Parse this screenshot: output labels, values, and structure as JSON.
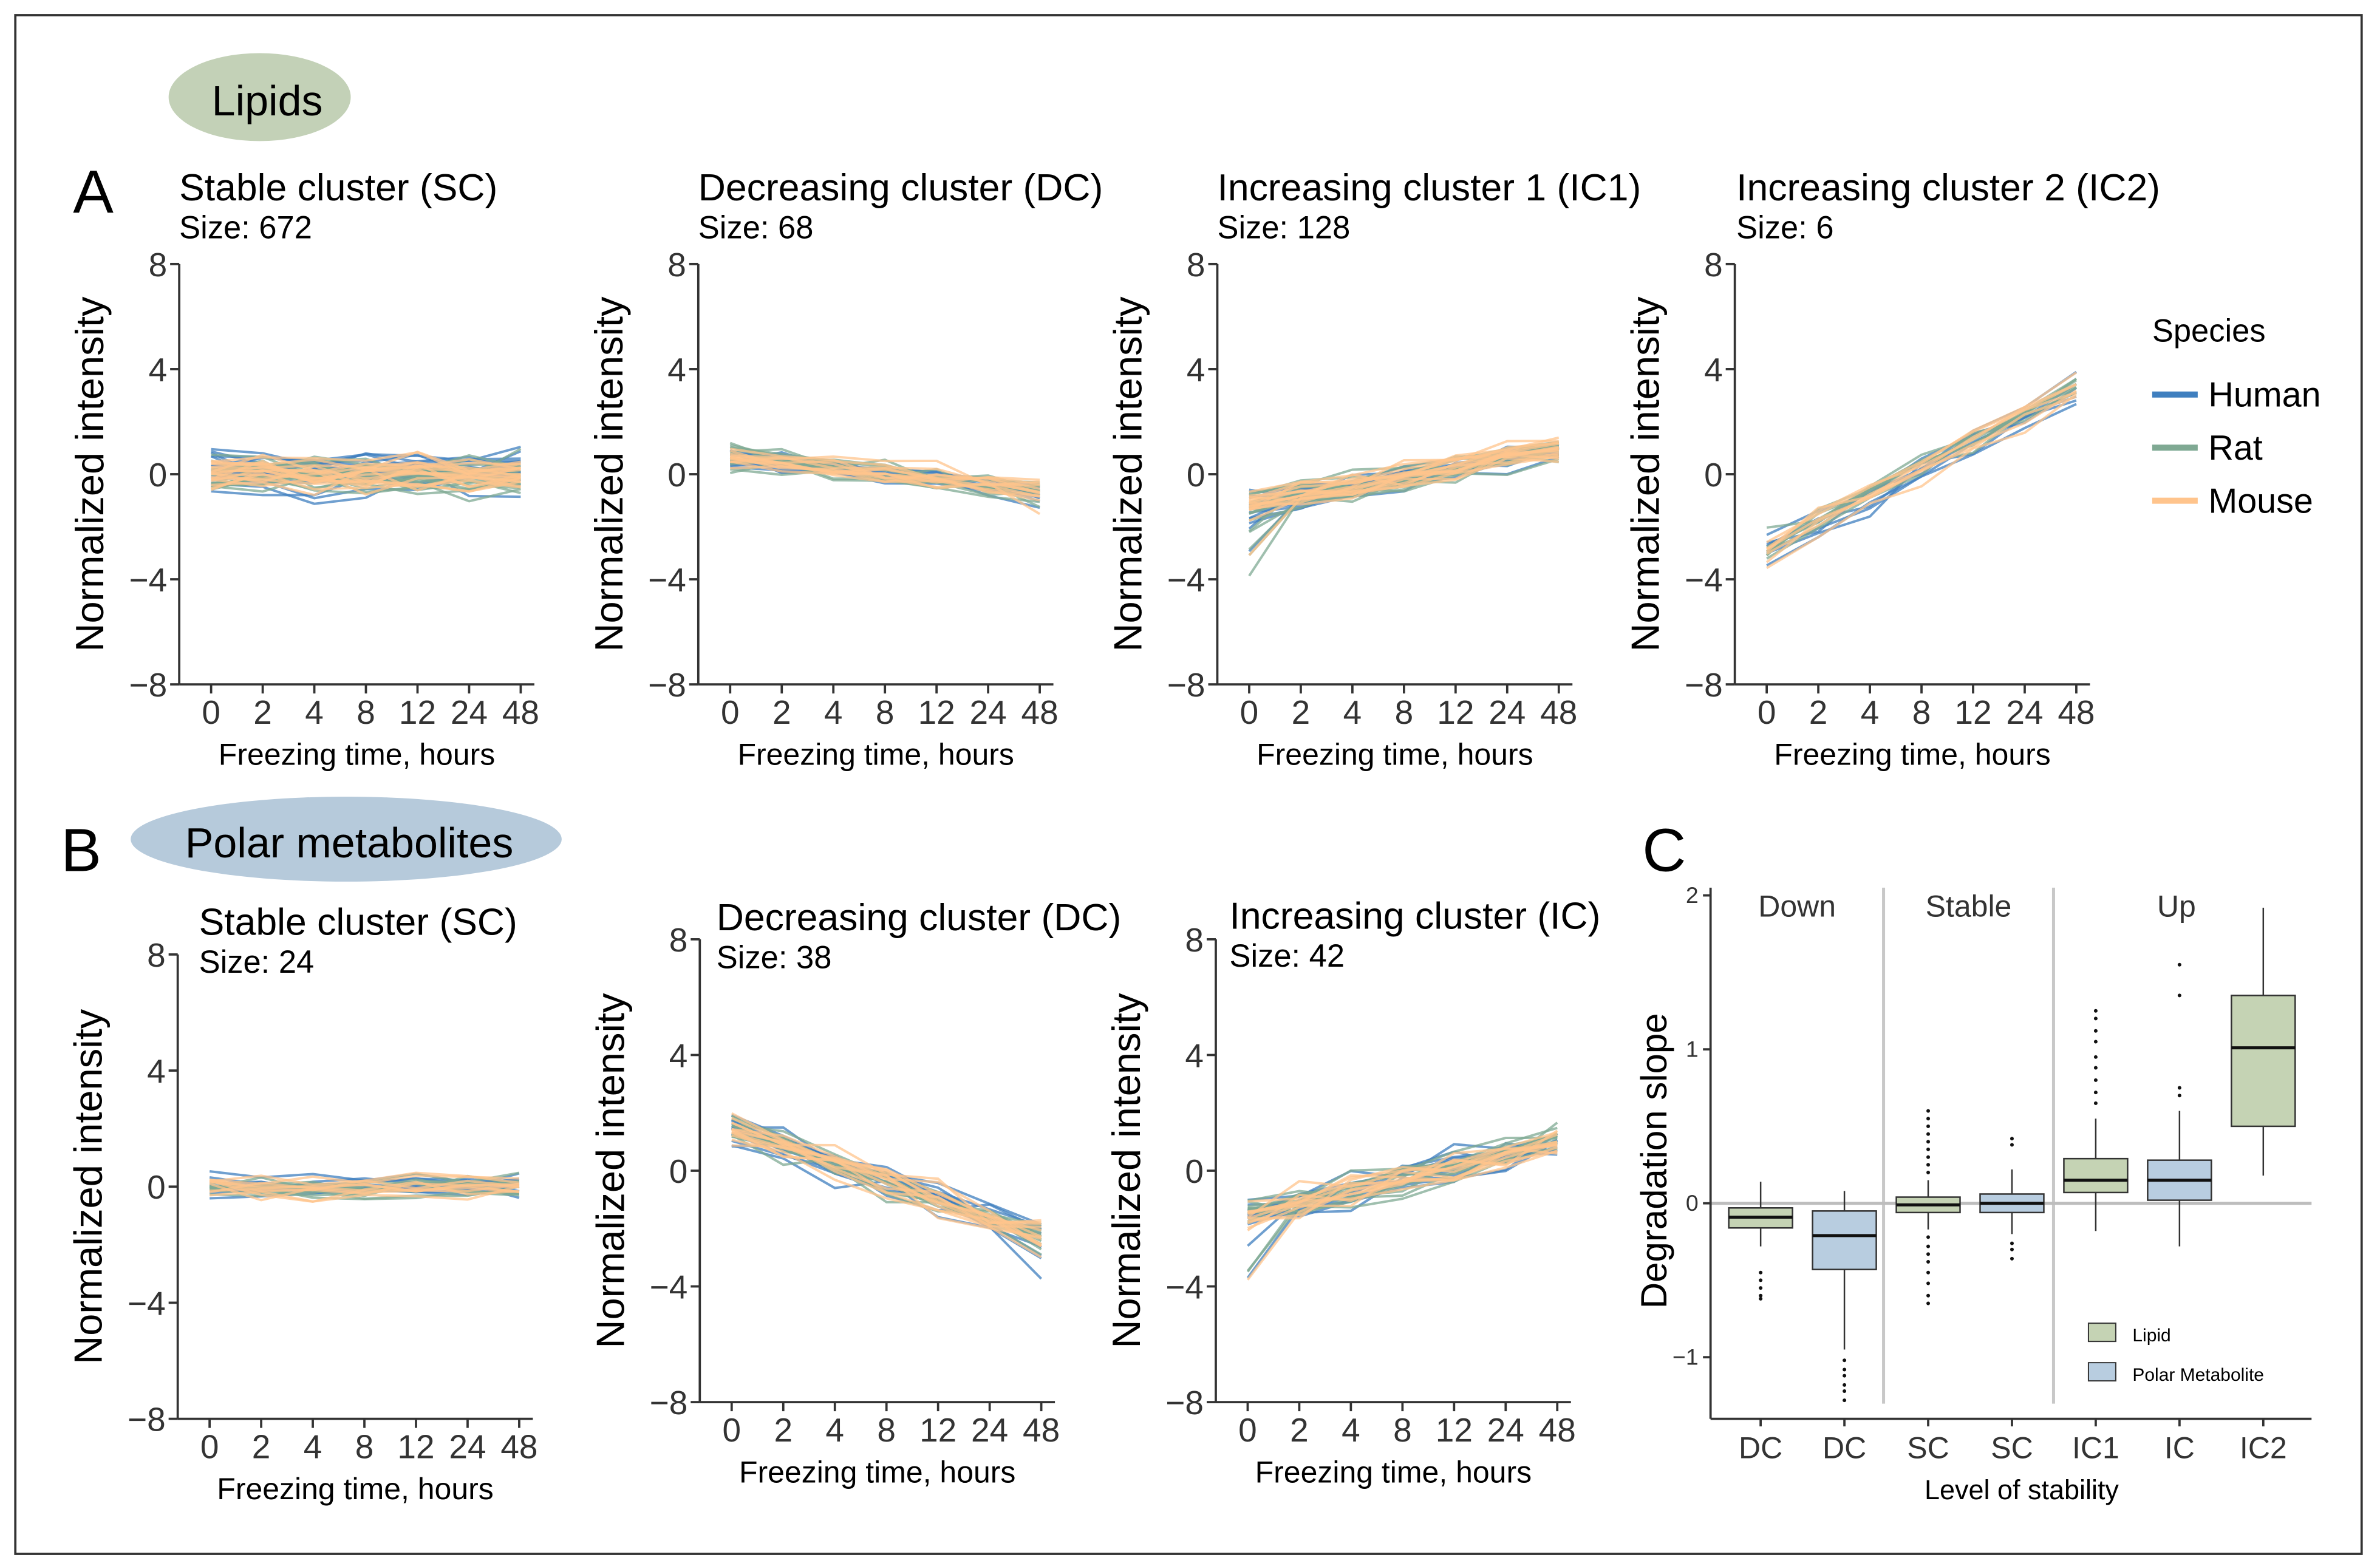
{
  "colors": {
    "human": "#3f7fbf",
    "rat": "#7fa993",
    "mouse": "#ffc48c",
    "lipid_box": "#c5d3b4",
    "polar_box": "#b8cde0",
    "lipid_badge": "#c3d1b7",
    "polar_badge": "#b6cadb"
  },
  "badges": {
    "lipids": "Lipids",
    "polar": "Polar metabolites"
  },
  "panel_letters": {
    "a": "A",
    "b": "B",
    "c": "C"
  },
  "legend": {
    "title": "Species",
    "items": [
      "Human",
      "Rat",
      "Mouse"
    ]
  },
  "common": {
    "xlabel": "Freezing time, hours",
    "ylabel": "Normalized intensity",
    "x_ticks": [
      "0",
      "2",
      "4",
      "8",
      "12",
      "24",
      "48"
    ],
    "y_ticks": [
      "8",
      "4",
      "0",
      "−4",
      "−8"
    ]
  },
  "chart_data": [
    {
      "id": "lip_sc",
      "type": "line",
      "title": "Stable cluster (SC)",
      "size_label": "Size: 672",
      "x": [
        0,
        2,
        4,
        8,
        12,
        24,
        48
      ],
      "ylim": [
        -8,
        8
      ],
      "pattern": "stable",
      "spread": 1.2,
      "n_lines": 60
    },
    {
      "id": "lip_dc",
      "type": "line",
      "title": "Decreasing cluster (DC)",
      "size_label": "Size: 68",
      "x": [
        0,
        2,
        4,
        8,
        12,
        24,
        48
      ],
      "ylim": [
        -8,
        8
      ],
      "pattern": "decreasing",
      "start": 0.6,
      "end": -0.6,
      "spread": 0.8,
      "n_lines": 40
    },
    {
      "id": "lip_ic1",
      "type": "line",
      "title": "Increasing cluster 1 (IC1)",
      "size_label": "Size: 128",
      "x": [
        0,
        2,
        4,
        8,
        12,
        24,
        48
      ],
      "ylim": [
        -8,
        8
      ],
      "pattern": "increasing",
      "start": -1.2,
      "end": 1.0,
      "spread": 0.9,
      "n_lines": 50
    },
    {
      "id": "lip_ic2",
      "type": "line",
      "title": "Increasing cluster 2 (IC2)",
      "size_label": "Size: 6",
      "x": [
        0,
        2,
        4,
        8,
        12,
        24,
        48
      ],
      "ylim": [
        -8,
        8
      ],
      "pattern": "increasing",
      "start": -2.8,
      "end": 3.3,
      "spread": 1.0,
      "n_lines": 20
    },
    {
      "id": "pol_sc",
      "type": "line",
      "title": "Stable cluster (SC)",
      "size_label": "Size: 24",
      "x": [
        0,
        2,
        4,
        8,
        12,
        24,
        48
      ],
      "ylim": [
        -8,
        8
      ],
      "pattern": "stable",
      "spread": 0.7,
      "n_lines": 30
    },
    {
      "id": "pol_dc",
      "type": "line",
      "title": "Decreasing cluster (DC)",
      "size_label": "Size: 38",
      "x": [
        0,
        2,
        4,
        8,
        12,
        24,
        48
      ],
      "ylim": [
        -8,
        8
      ],
      "pattern": "decreasing",
      "start": 1.5,
      "end": -2.2,
      "spread": 1.0,
      "n_lines": 40
    },
    {
      "id": "pol_ic",
      "type": "line",
      "title": "Increasing cluster (IC)",
      "size_label": "Size: 42",
      "x": [
        0,
        2,
        4,
        8,
        12,
        24,
        48
      ],
      "ylim": [
        -8,
        8
      ],
      "pattern": "increasing",
      "start": -1.5,
      "end": 1.0,
      "spread": 1.1,
      "n_lines": 40
    },
    {
      "id": "boxplot",
      "type": "box",
      "xlabel": "Level of stability",
      "ylabel": "Degradation slope",
      "ylim": [
        -1.4,
        2.05
      ],
      "y_ticks": [
        2,
        1,
        0,
        -1
      ],
      "y_tick_labels": [
        "2",
        "1",
        "0",
        "−1"
      ],
      "groups": [
        "Down",
        "Stable",
        "Up"
      ],
      "categories": [
        "DC",
        "DC",
        "SC",
        "SC",
        "IC1",
        "IC",
        "IC2"
      ],
      "kinds": [
        "lipid",
        "polar",
        "lipid",
        "polar",
        "lipid",
        "polar",
        "lipid"
      ],
      "boxes": [
        {
          "q1": -0.16,
          "med": -0.09,
          "q3": -0.03,
          "wlo": -0.28,
          "whi": 0.14,
          "out": [
            -0.45,
            -0.5,
            -0.55,
            -0.6,
            -0.62
          ]
        },
        {
          "q1": -0.43,
          "med": -0.21,
          "q3": -0.05,
          "wlo": -0.95,
          "whi": 0.08,
          "out": [
            -1.02,
            -1.08,
            -1.12,
            -1.18,
            -1.22,
            -1.28
          ]
        },
        {
          "q1": -0.06,
          "med": -0.01,
          "q3": 0.04,
          "wlo": -0.17,
          "whi": 0.15,
          "out": [
            0.2,
            0.25,
            0.3,
            0.35,
            0.4,
            0.45,
            0.5,
            0.55,
            0.6,
            -0.22,
            -0.28,
            -0.33,
            -0.38,
            -0.45,
            -0.52,
            -0.6,
            -0.65
          ]
        },
        {
          "q1": -0.06,
          "med": 0.0,
          "q3": 0.06,
          "wlo": -0.2,
          "whi": 0.22,
          "out": [
            0.38,
            0.42,
            -0.26,
            -0.3,
            -0.36
          ]
        },
        {
          "q1": 0.07,
          "med": 0.15,
          "q3": 0.29,
          "wlo": -0.18,
          "whi": 0.55,
          "out": [
            0.65,
            0.72,
            0.8,
            0.88,
            0.95,
            1.05,
            1.12,
            1.2,
            1.25
          ]
        },
        {
          "q1": 0.02,
          "med": 0.15,
          "q3": 0.28,
          "wlo": -0.28,
          "whi": 0.6,
          "out": [
            0.7,
            0.75,
            1.35,
            1.55
          ]
        },
        {
          "q1": 0.5,
          "med": 1.01,
          "q3": 1.35,
          "wlo": 0.18,
          "whi": 1.92,
          "out": []
        }
      ],
      "legend": [
        "Lipid",
        "Polar Metabolite"
      ]
    }
  ]
}
